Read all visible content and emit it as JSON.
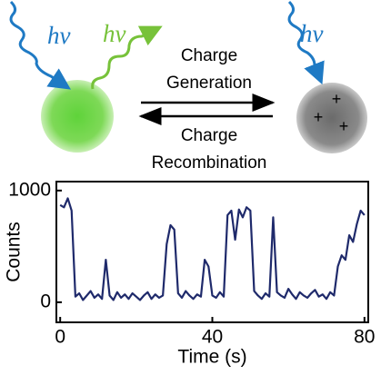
{
  "diagram": {
    "photon_labels": [
      "hν",
      "hν",
      "hν"
    ],
    "forward_label": [
      "Charge",
      "Generation"
    ],
    "reverse_label": [
      "Charge",
      "Recombination"
    ],
    "charges": [
      "+",
      "+",
      "+"
    ]
  },
  "chart_data": {
    "type": "line",
    "x_label": "Time (s)",
    "y_label": "Counts",
    "x": [
      0,
      1,
      2,
      3,
      4,
      5,
      6,
      7,
      8,
      9,
      10,
      11,
      12,
      13,
      14,
      15,
      16,
      17,
      18,
      19,
      20,
      21,
      22,
      23,
      24,
      25,
      26,
      27,
      28,
      29,
      30,
      31,
      32,
      33,
      34,
      35,
      36,
      37,
      38,
      39,
      40,
      41,
      42,
      43,
      44,
      45,
      46,
      47,
      48,
      49,
      50,
      51,
      52,
      53,
      54,
      55,
      56,
      57,
      58,
      59,
      60,
      61,
      62,
      63,
      64,
      65,
      66,
      67,
      68,
      69,
      70,
      71,
      72,
      73,
      74,
      75,
      76,
      77,
      78,
      79,
      80
    ],
    "series": [
      {
        "color": "#1f2a6b",
        "values": [
          870,
          850,
          930,
          820,
          50,
          80,
          20,
          60,
          100,
          40,
          70,
          30,
          380,
          60,
          20,
          90,
          40,
          70,
          30,
          80,
          50,
          20,
          60,
          90,
          30,
          70,
          40,
          60,
          520,
          690,
          650,
          80,
          40,
          100,
          60,
          30,
          70,
          50,
          380,
          320,
          60,
          40,
          90,
          50,
          780,
          820,
          560,
          830,
          760,
          850,
          820,
          100,
          60,
          30,
          80,
          50,
          760,
          90,
          60,
          40,
          120,
          70,
          30,
          90,
          60,
          40,
          80,
          110,
          50,
          70,
          30,
          90,
          60,
          320,
          420,
          380,
          600,
          540,
          700,
          820,
          780
        ]
      }
    ],
    "xlim": [
      -1,
      81
    ],
    "ylim": [
      -180,
      1080
    ],
    "xticks": [
      0,
      40,
      80
    ],
    "yticks": [
      0,
      1000
    ]
  }
}
